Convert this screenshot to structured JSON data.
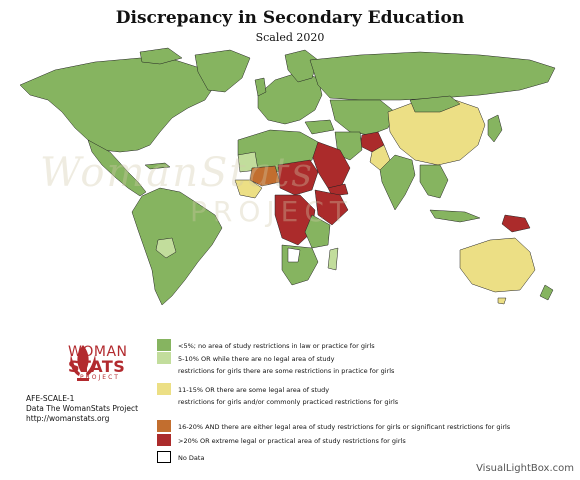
{
  "title": "Discrepancy in Secondary Education",
  "subtitle": "Scaled 2020",
  "watermark": {
    "line1": "WomanStats",
    "line2": "PROJECT"
  },
  "logo": {
    "line1": "WOMAN",
    "line2": "STATS",
    "line3": "PROJECT"
  },
  "scale_code": "AFE-SCALE-1",
  "source": "Data The WomanStats Project",
  "url": "http://womanstats.org",
  "colors": {
    "level0": "#86b460",
    "level1": "#c2dd9c",
    "level2": "#ecdf85",
    "level3": "#c26e2f",
    "level4": "#ab2b2b",
    "nodata": "#ffffff",
    "border": "#222222"
  },
  "legend": [
    {
      "color": "#86b460",
      "text": "<5%; no area of study restrictions in law or practice for girls"
    },
    {
      "color": "#c2dd9c",
      "text": "5-10% OR while there are no legal area of study\nrestrictions for girls there are some restrictions in practice for girls"
    },
    {
      "color": "#ecdf85",
      "text": "11-15% OR there are some legal area of study\nrestrictions for girls and/or commonly practiced restrictions for girls"
    },
    {
      "color": "#c26e2f",
      "text": "16-20% AND there are either legal area of study restrictions for girls or significant restrictions for girls"
    },
    {
      "color": "#ab2b2b",
      "text": ">20% OR extreme legal or practical area of study restrictions for girls"
    },
    {
      "color": "#ffffff",
      "text": "No Data"
    }
  ],
  "credit": "VisualLightBox.com"
}
